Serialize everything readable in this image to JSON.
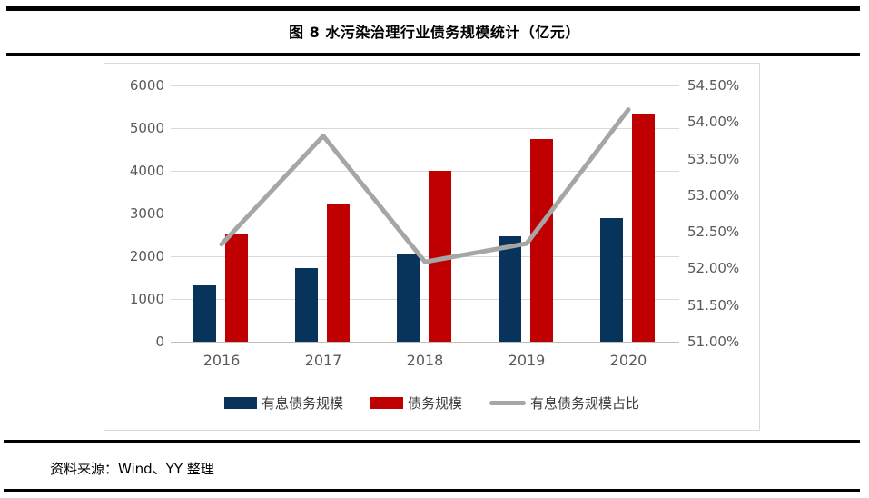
{
  "title": "图 8 水污染治理行业债务规模统计（亿元）",
  "source": "资料来源：Wind、YY 整理",
  "colors": {
    "interest_debt_bar": "#08345c",
    "total_debt_bar": "#c00000",
    "ratio_line": "#a6a6a6",
    "gridline": "#d9d9d9",
    "axis_text": "#595959"
  },
  "chart_data": {
    "type": "bar",
    "subtype": "dual-axis bar+line combo",
    "categories": [
      "2016",
      "2017",
      "2018",
      "2019",
      "2020"
    ],
    "series": [
      {
        "key": "interest_debt",
        "name": "有息债务规模",
        "kind": "bar",
        "axis": "left",
        "color": "#08345c",
        "values": [
          1320,
          1730,
          2060,
          2470,
          2890
        ]
      },
      {
        "key": "total_debt",
        "name": "债务规模",
        "kind": "bar",
        "axis": "left",
        "color": "#c00000",
        "values": [
          2520,
          3240,
          4000,
          4750,
          5330
        ]
      },
      {
        "key": "interest_debt_ratio",
        "name": "有息债务规模占比",
        "kind": "line",
        "axis": "right",
        "color": "#a6a6a6",
        "values": [
          52.33,
          53.81,
          52.09,
          52.34,
          54.17
        ]
      }
    ],
    "left_axis": {
      "min": 0,
      "max": 6000,
      "step": 1000,
      "ticks": [
        "6000",
        "5000",
        "4000",
        "3000",
        "2000",
        "1000",
        "0"
      ]
    },
    "right_axis": {
      "min": 51.0,
      "max": 54.5,
      "step": 0.5,
      "ticks": [
        "54.50%",
        "54.00%",
        "53.50%",
        "53.00%",
        "52.50%",
        "52.00%",
        "51.50%",
        "51.00%"
      ]
    },
    "grid": true,
    "legend_position": "bottom"
  }
}
